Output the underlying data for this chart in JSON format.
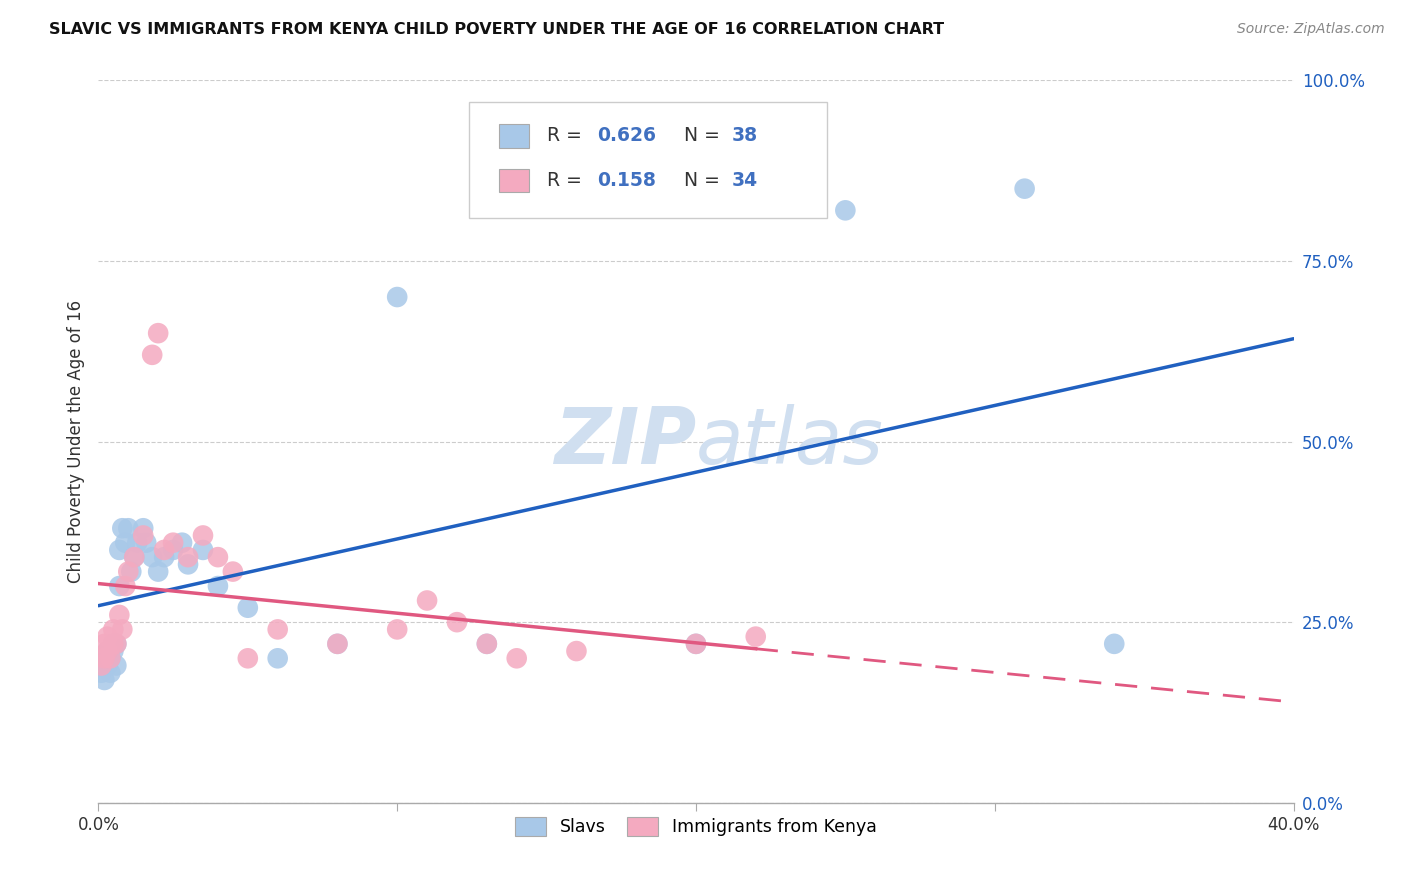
{
  "title": "SLAVIC VS IMMIGRANTS FROM KENYA CHILD POVERTY UNDER THE AGE OF 16 CORRELATION CHART",
  "source": "Source: ZipAtlas.com",
  "ylabel": "Child Poverty Under the Age of 16",
  "xmin": 0.0,
  "xmax": 0.4,
  "ymin": 0.0,
  "ymax": 1.0,
  "yticks": [
    0.0,
    0.25,
    0.5,
    0.75,
    1.0
  ],
  "ytick_labels": [
    "0.0%",
    "25.0%",
    "50.0%",
    "75.0%",
    "100.0%"
  ],
  "xticks": [
    0.0,
    0.1,
    0.2,
    0.3,
    0.4
  ],
  "xtick_labels": [
    "0.0%",
    "",
    "",
    "",
    "40.0%"
  ],
  "legend_R1": "0.626",
  "legend_N1": "38",
  "legend_R2": "0.158",
  "legend_N2": "34",
  "legend_text_color": "#4070c0",
  "slavs_color": "#a8c8e8",
  "kenya_color": "#f4aac0",
  "slavs_line_color": "#2060c0",
  "kenya_line_color": "#e05880",
  "watermark_color": "#d0dff0",
  "slavs_x": [
    0.001,
    0.002,
    0.002,
    0.003,
    0.003,
    0.004,
    0.004,
    0.005,
    0.005,
    0.006,
    0.006,
    0.007,
    0.007,
    0.008,
    0.009,
    0.01,
    0.011,
    0.012,
    0.013,
    0.015,
    0.016,
    0.018,
    0.02,
    0.022,
    0.025,
    0.028,
    0.03,
    0.035,
    0.04,
    0.05,
    0.06,
    0.08,
    0.1,
    0.13,
    0.2,
    0.25,
    0.31,
    0.34
  ],
  "slavs_y": [
    0.18,
    0.2,
    0.17,
    0.21,
    0.19,
    0.2,
    0.18,
    0.22,
    0.21,
    0.19,
    0.22,
    0.35,
    0.3,
    0.38,
    0.36,
    0.38,
    0.32,
    0.34,
    0.36,
    0.38,
    0.36,
    0.34,
    0.32,
    0.34,
    0.35,
    0.36,
    0.33,
    0.35,
    0.3,
    0.27,
    0.2,
    0.22,
    0.7,
    0.22,
    0.22,
    0.82,
    0.85,
    0.22
  ],
  "kenya_x": [
    0.001,
    0.002,
    0.002,
    0.003,
    0.003,
    0.004,
    0.005,
    0.005,
    0.006,
    0.007,
    0.008,
    0.009,
    0.01,
    0.012,
    0.015,
    0.018,
    0.02,
    0.022,
    0.025,
    0.03,
    0.035,
    0.04,
    0.045,
    0.05,
    0.06,
    0.08,
    0.1,
    0.11,
    0.12,
    0.13,
    0.14,
    0.16,
    0.2,
    0.22
  ],
  "kenya_y": [
    0.19,
    0.2,
    0.22,
    0.21,
    0.23,
    0.2,
    0.22,
    0.24,
    0.22,
    0.26,
    0.24,
    0.3,
    0.32,
    0.34,
    0.37,
    0.62,
    0.65,
    0.35,
    0.36,
    0.34,
    0.37,
    0.34,
    0.32,
    0.2,
    0.24,
    0.22,
    0.24,
    0.28,
    0.25,
    0.22,
    0.2,
    0.21,
    0.22,
    0.23
  ]
}
